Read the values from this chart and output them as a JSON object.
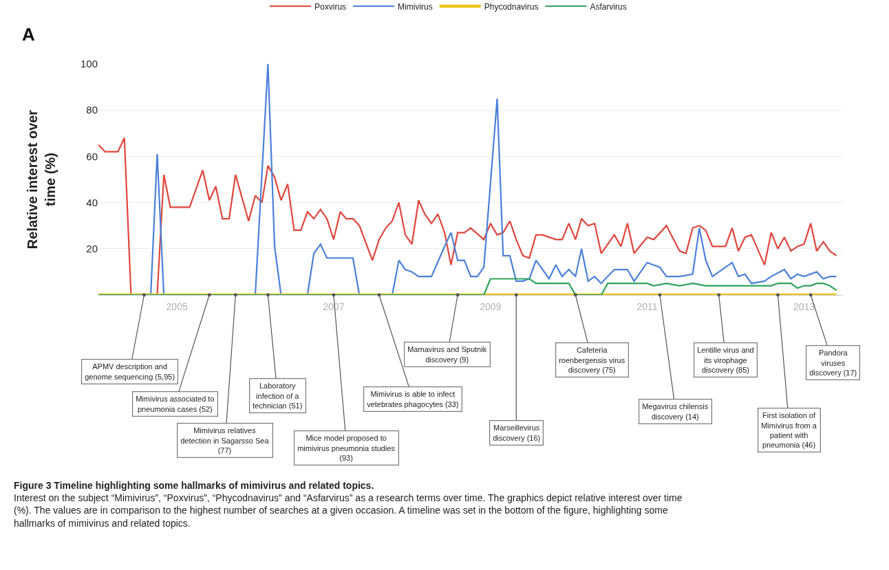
{
  "chart_data": {
    "type": "line",
    "title": "Figure 3 Timeline highlighting some hallmarks of mimivirus and related topics.",
    "ylabel": "Relative interest over\ntime (%)",
    "xlim": [
      "2004-01",
      "2013-07"
    ],
    "xticks": [
      "2005",
      "2007",
      "2009",
      "2011",
      "2013"
    ],
    "ylim": [
      0,
      100
    ],
    "yticks": [
      20,
      40,
      60,
      80,
      100
    ],
    "grid": "y",
    "legend": "top",
    "marker": "none",
    "line_style": "solid",
    "series": [
      {
        "name": "Poxvirus",
        "color": "#e0453b",
        "x": [
          "2004-01",
          "2004-02",
          "2004-04",
          "2004-05",
          "2004-06",
          "2004-10",
          "2004-11",
          "2004-12",
          "2005-03",
          "2005-05",
          "2005-06",
          "2005-07",
          "2005-08",
          "2005-09",
          "2005-10",
          "2005-12",
          "2006-01",
          "2006-02",
          "2006-03",
          "2006-04",
          "2006-05",
          "2006-06",
          "2006-07",
          "2006-08",
          "2006-09",
          "2006-10",
          "2006-11",
          "2006-12",
          "2007-01",
          "2007-02",
          "2007-03",
          "2007-04",
          "2007-05",
          "2007-07",
          "2007-08",
          "2007-09",
          "2007-10",
          "2007-11",
          "2007-12",
          "2008-01",
          "2008-02",
          "2008-03",
          "2008-04",
          "2008-05",
          "2008-06",
          "2008-07",
          "2008-08",
          "2008-09",
          "2008-10",
          "2008-12",
          "2009-01",
          "2009-02",
          "2009-03",
          "2009-04",
          "2009-05",
          "2009-06",
          "2009-07",
          "2009-08",
          "2009-09",
          "2009-11",
          "2009-12",
          "2010-01",
          "2010-02",
          "2010-03",
          "2010-04",
          "2010-05",
          "2010-06",
          "2010-08",
          "2010-09",
          "2010-10",
          "2010-11",
          "2011-01",
          "2011-02",
          "2011-04",
          "2011-06",
          "2011-07",
          "2011-08",
          "2011-09",
          "2011-10",
          "2011-11",
          "2012-01",
          "2012-02",
          "2012-03",
          "2012-04",
          "2012-05",
          "2012-07",
          "2012-08",
          "2012-09",
          "2012-10",
          "2012-11",
          "2012-12",
          "2013-01",
          "2013-02",
          "2013-03",
          "2013-04",
          "2013-05",
          "2013-06"
        ],
        "values": [
          65,
          62,
          62,
          68,
          0,
          0,
          52,
          38,
          38,
          54,
          41,
          47,
          33,
          33,
          52,
          32,
          43,
          40,
          56,
          51,
          41,
          48,
          28,
          28,
          36,
          33,
          37,
          33,
          24,
          36,
          33,
          33,
          30,
          15,
          24,
          29,
          32,
          40,
          26,
          22,
          41,
          35,
          31,
          35,
          27,
          13,
          27,
          27,
          29,
          24,
          31,
          26,
          27,
          32,
          24,
          17,
          16,
          26,
          26,
          24,
          24,
          31,
          24,
          33,
          30,
          31,
          18,
          26,
          21,
          31,
          18,
          25,
          24,
          30,
          19,
          18,
          29,
          30,
          28,
          21,
          21,
          29,
          19,
          25,
          26,
          13,
          27,
          20,
          25,
          19,
          21,
          22,
          31,
          19,
          23,
          19,
          17
        ]
      },
      {
        "name": "Mimivirus",
        "color": "#4a80d9",
        "x": [
          "2004-01",
          "2004-09",
          "2004-10",
          "2004-11",
          "2006-01",
          "2006-03",
          "2006-04",
          "2006-05",
          "2006-09",
          "2006-10",
          "2006-11",
          "2006-12",
          "2007-04",
          "2007-05",
          "2007-10",
          "2007-11",
          "2007-12",
          "2008-01",
          "2008-02",
          "2008-04",
          "2008-06",
          "2008-07",
          "2008-08",
          "2008-09",
          "2008-10",
          "2008-11",
          "2008-12",
          "2009-02",
          "2009-03",
          "2009-04",
          "2009-05",
          "2009-06",
          "2009-07",
          "2009-08",
          "2009-09",
          "2009-10",
          "2009-11",
          "2009-12",
          "2010-01",
          "2010-02",
          "2010-03",
          "2010-04",
          "2010-05",
          "2010-06",
          "2010-07",
          "2010-08",
          "2010-10",
          "2010-11",
          "2011-01",
          "2011-03",
          "2011-04",
          "2011-05",
          "2011-06",
          "2011-08",
          "2011-09",
          "2011-10",
          "2011-11",
          "2012-02",
          "2012-03",
          "2012-04",
          "2012-05",
          "2012-07",
          "2012-08",
          "2012-10",
          "2012-11",
          "2012-12",
          "2013-01",
          "2013-03",
          "2013-04",
          "2013-05",
          "2013-06"
        ],
        "values": [
          0,
          0,
          61,
          0,
          0,
          100,
          21,
          0,
          0,
          18,
          22,
          16,
          16,
          0,
          0,
          15,
          11,
          10,
          8,
          8,
          21,
          27,
          15,
          15,
          8,
          8,
          12,
          85,
          17,
          17,
          6,
          6,
          7,
          15,
          11,
          7,
          13,
          8,
          11,
          8,
          20,
          6,
          8,
          5,
          8,
          11,
          11,
          6,
          14,
          12,
          8,
          8,
          8,
          9,
          29,
          15,
          8,
          14,
          8,
          9,
          5,
          6,
          8,
          11,
          7,
          9,
          8,
          10,
          7,
          8,
          8
        ]
      },
      {
        "name": "Phycodnavirus",
        "color": "#f2c31b",
        "x": [
          "2004-01",
          "2013-06"
        ],
        "values": [
          0,
          0
        ]
      },
      {
        "name": "Asfarvirus",
        "color": "#2ea35c",
        "x": [
          "2004-01",
          "2008-12",
          "2009-01",
          "2009-07",
          "2009-08",
          "2009-12",
          "2010-01",
          "2010-02",
          "2010-06",
          "2010-07",
          "2011-01",
          "2011-02",
          "2011-04",
          "2011-06",
          "2011-08",
          "2011-10",
          "2012-08",
          "2012-09",
          "2012-11",
          "2012-12",
          "2013-01",
          "2013-02",
          "2013-03",
          "2013-04",
          "2013-05",
          "2013-06"
        ],
        "values": [
          0,
          0,
          7,
          7,
          5,
          5,
          5,
          0,
          0,
          5,
          5,
          4,
          5,
          4,
          5,
          4,
          4,
          5,
          5,
          3,
          4,
          4,
          5,
          5,
          4,
          2
        ]
      }
    ],
    "annotations": [
      "A",
      "Interest on the subject “Mimivirus”, “Poxvirus”, “Phycodnavirus” and “Asfarvirus” as a research terms over time. The graphics depict relative interest over time (%). The values are in comparison to the highest number of searches at a given occasion. A timeline was set in the bottom of the figure, highlighting some hallmarks of mimivirus and related topics.",
      {
        "text": "APMV description and\ngenome sequencing (5,95)",
        "x": "2004-08",
        "y": 0
      },
      {
        "text": "Mimivirus associated to\npneumonia cases (52)",
        "x": "2005-06",
        "y": 0
      },
      {
        "text": "Mimivirus relatives\ndetection in Sagarsso Sea\n(77)",
        "x": "2005-10",
        "y": 0
      },
      {
        "text": "Laboratory\ninfection of a\ntechnician (51)",
        "x": "2006-03",
        "y": 0
      },
      {
        "text": "Mice model proposed to\nmimivirus pneumonia studies\n(93)",
        "x": "2007-01",
        "y": 0
      },
      {
        "text": "Mimivirus is able to infect\nvetebrates phagocytes (33)",
        "x": "2007-08",
        "y": 0
      },
      {
        "text": "Mamavirus and Sputnik\ndiscovery (9)",
        "x": "2008-08",
        "y": 0
      },
      {
        "text": "Marseillevirus\ndiscovery (16)",
        "x": "2009-05",
        "y": 0
      },
      {
        "text": "Cafeteria\nroenbergensis virus\ndiscovery (75)",
        "x": "2010-02",
        "y": 0
      },
      {
        "text": "Megavirus chilensis\ndiscovery (14)",
        "x": "2011-03",
        "y": 0
      },
      {
        "text": "Lentille virus and\nits virophage\ndiscovery (85)",
        "x": "2011-12",
        "y": 0
      },
      {
        "text": "First isolation of\nMimivirus from a\npatient with\npneumonia (46)",
        "x": "2012-09",
        "y": 0
      },
      {
        "text": "Pandora\nviruses\ndiscovery (17)",
        "x": "2013-02",
        "y": 0
      }
    ]
  }
}
